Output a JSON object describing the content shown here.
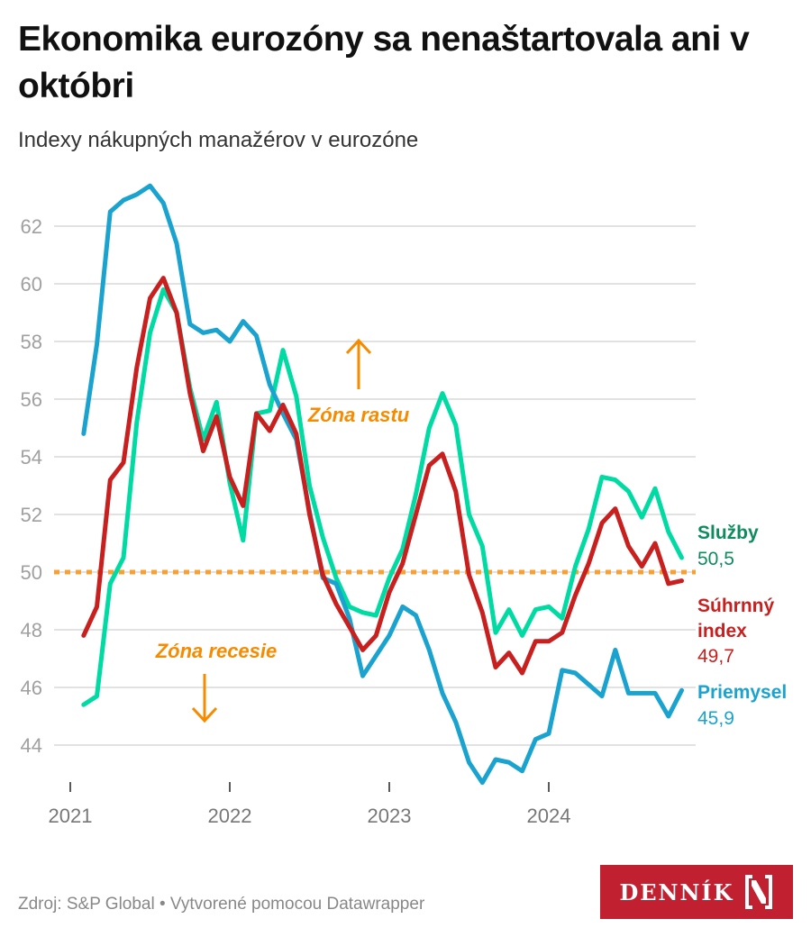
{
  "header": {
    "title": "Ekonomika eurozóny sa nenaštartovala ani v októbri",
    "subtitle": "Indexy nákupných manažérov v eurozóne"
  },
  "footer": {
    "source": "Zdroj: S&P Global • Vytvorené pomocou Datawrapper",
    "logo_text": "DENNÍK",
    "logo_icon": "denník-n-logo-icon"
  },
  "colors": {
    "manufacturing": "#1BA3D0",
    "services_line": "#00DBA3",
    "services_label": "#0E8C5E",
    "composite": "#C8201F",
    "threshold": "#F7A035",
    "annotation": "#F78B00",
    "logo_bg": "#C0202F"
  },
  "chart_data": {
    "type": "line",
    "title": "Ekonomika eurozóny sa nenaštartovala ani v októbri",
    "subtitle": "Indexy nákupných manažérov v eurozóne",
    "xlabel": "",
    "ylabel": "",
    "x_start": "2021-01",
    "x_end": "2024-10",
    "x_frequency": "monthly",
    "x_ticks": [
      "2021",
      "2022",
      "2023",
      "2024"
    ],
    "y_ticks": [
      "44",
      "46",
      "48",
      "50",
      "52",
      "54",
      "56",
      "58",
      "60",
      "62"
    ],
    "ylim": [
      43,
      63.5
    ],
    "grid": true,
    "threshold": {
      "value": 50,
      "style": "dotted"
    },
    "annotations": [
      {
        "text": "Zóna rastu",
        "arrow": "up",
        "x": "2022-09",
        "y": 55.5
      },
      {
        "text": "Zóna recesie",
        "arrow": "down",
        "x": "2021-10",
        "y": 47.3
      }
    ],
    "series": [
      {
        "name": "Služby",
        "end_label": "50,5",
        "color_key": "services_line",
        "label_color_key": "services_label",
        "values": [
          45.4,
          45.7,
          49.6,
          50.5,
          55.2,
          58.3,
          59.8,
          59.0,
          56.4,
          54.6,
          55.9,
          53.1,
          51.1,
          55.5,
          55.6,
          57.7,
          56.1,
          53.0,
          51.2,
          49.8,
          48.8,
          48.6,
          48.5,
          49.8,
          50.8,
          52.7,
          55.0,
          56.2,
          55.1,
          52.0,
          50.9,
          47.9,
          48.7,
          47.8,
          48.7,
          48.8,
          48.4,
          50.2,
          51.5,
          53.3,
          53.2,
          52.8,
          51.9,
          52.9,
          51.4,
          50.5
        ]
      },
      {
        "name": "Súhrnný index",
        "end_label": "49,7",
        "color_key": "composite",
        "label_color_key": "composite",
        "values": [
          47.8,
          48.8,
          53.2,
          53.8,
          57.1,
          59.5,
          60.2,
          59.0,
          56.2,
          54.2,
          55.4,
          53.3,
          52.3,
          55.5,
          54.9,
          55.8,
          54.8,
          52.0,
          49.9,
          48.9,
          48.1,
          47.3,
          47.8,
          49.3,
          50.3,
          52.0,
          53.7,
          54.1,
          52.8,
          49.9,
          48.6,
          46.7,
          47.2,
          46.5,
          47.6,
          47.6,
          47.9,
          49.2,
          50.3,
          51.7,
          52.2,
          50.9,
          50.2,
          51.0,
          49.6,
          49.7
        ]
      },
      {
        "name": "Priemysel",
        "end_label": "45,9",
        "color_key": "manufacturing",
        "label_color_key": "manufacturing",
        "values": [
          54.8,
          57.9,
          62.5,
          62.9,
          63.1,
          63.4,
          62.8,
          61.4,
          58.6,
          58.3,
          58.4,
          58.0,
          58.7,
          58.2,
          56.5,
          55.5,
          54.6,
          52.1,
          49.8,
          49.6,
          48.4,
          46.4,
          47.1,
          47.8,
          48.8,
          48.5,
          47.3,
          45.8,
          44.8,
          43.4,
          42.7,
          43.5,
          43.4,
          43.1,
          44.2,
          44.4,
          46.6,
          46.5,
          46.1,
          45.7,
          47.3,
          45.8,
          45.8,
          45.8,
          45.0,
          45.9
        ]
      }
    ]
  }
}
